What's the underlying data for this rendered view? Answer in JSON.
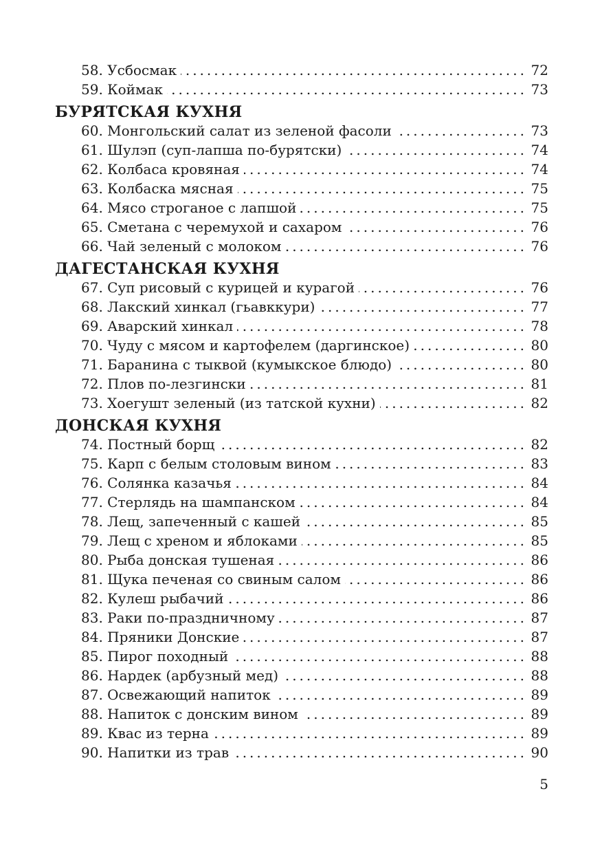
{
  "page": {
    "number": "5"
  },
  "toc": {
    "sections": [
      {
        "title": "",
        "entries": [
          {
            "label": "58. Усбосмак",
            "page": "72"
          },
          {
            "label": "59. Коймак",
            "page": "73"
          }
        ]
      },
      {
        "title": "БУРЯТСКАЯ КУХНЯ",
        "entries": [
          {
            "label": "60. Монгольский салат из зеленой фасоли",
            "page": "73"
          },
          {
            "label": "61. Шулэп (суп-лапша по-бурятски)",
            "page": "74"
          },
          {
            "label": "62. Колбаса кровяная",
            "page": "74"
          },
          {
            "label": "63. Колбаска мясная",
            "page": "75"
          },
          {
            "label": "64. Мясо строганое с лапшой",
            "page": "75"
          },
          {
            "label": "65. Сметана с черемухой и сахаром",
            "page": "76"
          },
          {
            "label": "66. Чай зеленый с молоком",
            "page": "76"
          }
        ]
      },
      {
        "title": "ДАГЕСТАНСКАЯ КУХНЯ",
        "entries": [
          {
            "label": "67. Суп рисовый с курицей и курагой",
            "page": "76"
          },
          {
            "label": "68. Лакский хинкал (гьавккури)",
            "page": "77"
          },
          {
            "label": "69. Аварский хинкал",
            "page": "78"
          },
          {
            "label": "70. Чуду с мясом и картофелем (даргинское)",
            "page": "80"
          },
          {
            "label": "71. Баранина с тыквой (кумыкское блюдо)",
            "page": "80"
          },
          {
            "label": "72. Плов по-лезгински",
            "page": "81"
          },
          {
            "label": "73. Хоегушт зеленый (из татской кухни)",
            "page": "82"
          }
        ]
      },
      {
        "title": "ДОНСКАЯ КУХНЯ",
        "entries": [
          {
            "label": "74. Постный борщ",
            "page": "82"
          },
          {
            "label": "75. Карп с белым столовым вином",
            "page": "83"
          },
          {
            "label": "76. Солянка казачья",
            "page": "84"
          },
          {
            "label": "77. Стерлядь на шампанском",
            "page": "84"
          },
          {
            "label": "78. Лещ, запеченный с кашей",
            "page": "85"
          },
          {
            "label": "79. Лещ с хреном и яблоками",
            "page": "85"
          },
          {
            "label": "80. Рыба донская тушеная",
            "page": "86"
          },
          {
            "label": "81. Щука печеная со свиным салом",
            "page": "86"
          },
          {
            "label": "82. Кулеш рыбачий",
            "page": "86"
          },
          {
            "label": "83. Раки по-праздничному",
            "page": "87"
          },
          {
            "label": "84. Пряники Донские",
            "page": "87"
          },
          {
            "label": "85. Пирог походный",
            "page": "88"
          },
          {
            "label": "86. Нардек (арбузный мед)",
            "page": "88"
          },
          {
            "label": "87. Освежающий напиток",
            "page": "89"
          },
          {
            "label": "88. Напиток с донским вином",
            "page": "89"
          },
          {
            "label": "89. Квас из терна",
            "page": "89"
          },
          {
            "label": "90. Напитки из трав",
            "page": "90"
          }
        ]
      }
    ]
  }
}
